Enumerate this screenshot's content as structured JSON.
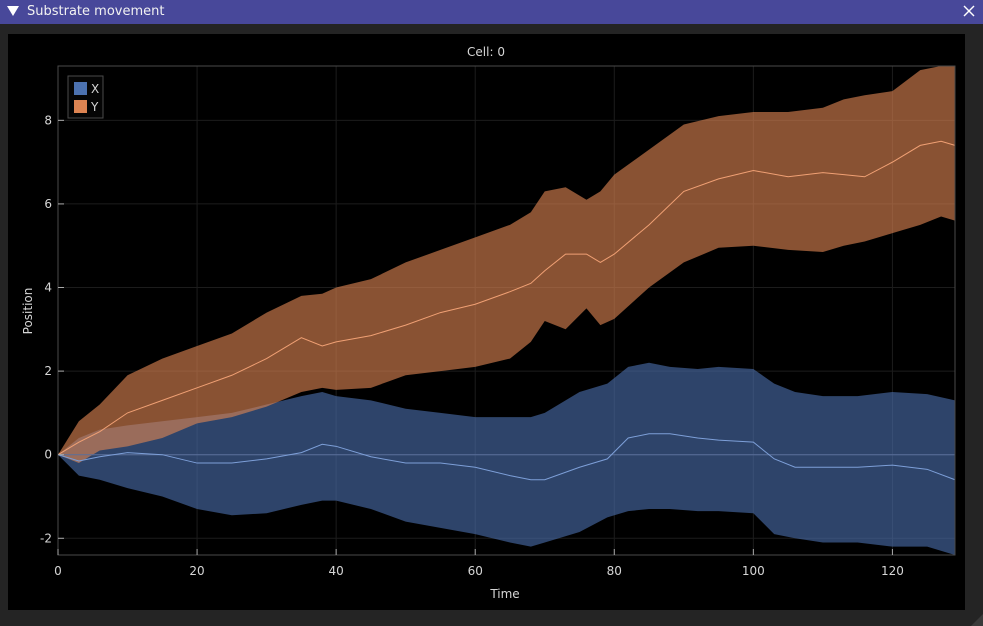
{
  "window": {
    "title": "Substrate movement"
  },
  "icons": {
    "collapse": "collapse-triangle-icon",
    "close": "close-icon",
    "resize": "resize-grip-icon"
  },
  "chart_data": {
    "type": "area",
    "title": "Cell: 0",
    "xlabel": "Time",
    "ylabel": "Position",
    "xlim": [
      0,
      129
    ],
    "ylim": [
      -2.4,
      9.3
    ],
    "xticks": [
      0,
      20,
      40,
      60,
      80,
      100,
      120
    ],
    "yticks": [
      -2,
      0,
      2,
      4,
      6,
      8
    ],
    "grid": true,
    "legend": "top-left",
    "series": [
      {
        "name": "X",
        "color": "#4c72b0",
        "x": [
          0,
          3,
          6,
          10,
          15,
          20,
          25,
          30,
          35,
          38,
          40,
          45,
          50,
          55,
          60,
          65,
          68,
          70,
          75,
          79,
          82,
          85,
          88,
          92,
          95,
          100,
          103,
          106,
          110,
          115,
          120,
          125,
          129
        ],
        "mean": [
          0,
          -0.15,
          -0.05,
          0.05,
          0,
          -0.2,
          -0.2,
          -0.1,
          0.05,
          0.25,
          0.2,
          -0.05,
          -0.2,
          -0.2,
          -0.3,
          -0.5,
          -0.6,
          -0.6,
          -0.3,
          -0.1,
          0.4,
          0.5,
          0.5,
          0.4,
          0.35,
          0.3,
          -0.1,
          -0.3,
          -0.3,
          -0.3,
          -0.25,
          -0.35,
          -0.6
        ],
        "upper": [
          0,
          0.4,
          0.6,
          0.7,
          0.8,
          0.9,
          1.0,
          1.2,
          1.4,
          1.5,
          1.4,
          1.3,
          1.1,
          1.0,
          0.9,
          0.9,
          0.9,
          1.0,
          1.5,
          1.7,
          2.1,
          2.2,
          2.1,
          2.05,
          2.1,
          2.05,
          1.7,
          1.5,
          1.4,
          1.4,
          1.5,
          1.45,
          1.3
        ],
        "lower": [
          0,
          -0.5,
          -0.6,
          -0.8,
          -1.0,
          -1.3,
          -1.45,
          -1.4,
          -1.2,
          -1.1,
          -1.1,
          -1.3,
          -1.6,
          -1.75,
          -1.9,
          -2.1,
          -2.2,
          -2.1,
          -1.85,
          -1.5,
          -1.35,
          -1.3,
          -1.3,
          -1.35,
          -1.35,
          -1.4,
          -1.9,
          -2.0,
          -2.1,
          -2.1,
          -2.2,
          -2.2,
          -2.4
        ]
      },
      {
        "name": "Y",
        "color": "#dd8452",
        "x": [
          0,
          3,
          6,
          10,
          15,
          20,
          25,
          30,
          35,
          38,
          40,
          45,
          50,
          55,
          60,
          65,
          68,
          70,
          73,
          76,
          78,
          80,
          85,
          90,
          95,
          100,
          105,
          110,
          113,
          116,
          120,
          124,
          127,
          129
        ],
        "mean": [
          0,
          0.3,
          0.55,
          1.0,
          1.3,
          1.6,
          1.9,
          2.3,
          2.8,
          2.6,
          2.7,
          2.85,
          3.1,
          3.4,
          3.6,
          3.9,
          4.1,
          4.4,
          4.8,
          4.8,
          4.6,
          4.8,
          5.5,
          6.3,
          6.6,
          6.8,
          6.65,
          6.75,
          6.7,
          6.65,
          7.0,
          7.4,
          7.5,
          7.4
        ],
        "upper": [
          0,
          0.8,
          1.2,
          1.9,
          2.3,
          2.6,
          2.9,
          3.4,
          3.8,
          3.85,
          4.0,
          4.2,
          4.6,
          4.9,
          5.2,
          5.5,
          5.8,
          6.3,
          6.4,
          6.1,
          6.3,
          6.7,
          7.3,
          7.9,
          8.1,
          8.2,
          8.2,
          8.3,
          8.5,
          8.6,
          8.7,
          9.2,
          9.3,
          9.3
        ],
        "lower": [
          0,
          -0.2,
          0.1,
          0.2,
          0.4,
          0.75,
          0.9,
          1.15,
          1.5,
          1.6,
          1.55,
          1.6,
          1.9,
          2.0,
          2.1,
          2.3,
          2.7,
          3.2,
          3.0,
          3.5,
          3.1,
          3.25,
          4.0,
          4.6,
          4.95,
          5.0,
          4.9,
          4.85,
          5.0,
          5.1,
          5.3,
          5.5,
          5.7,
          5.6
        ]
      }
    ]
  }
}
